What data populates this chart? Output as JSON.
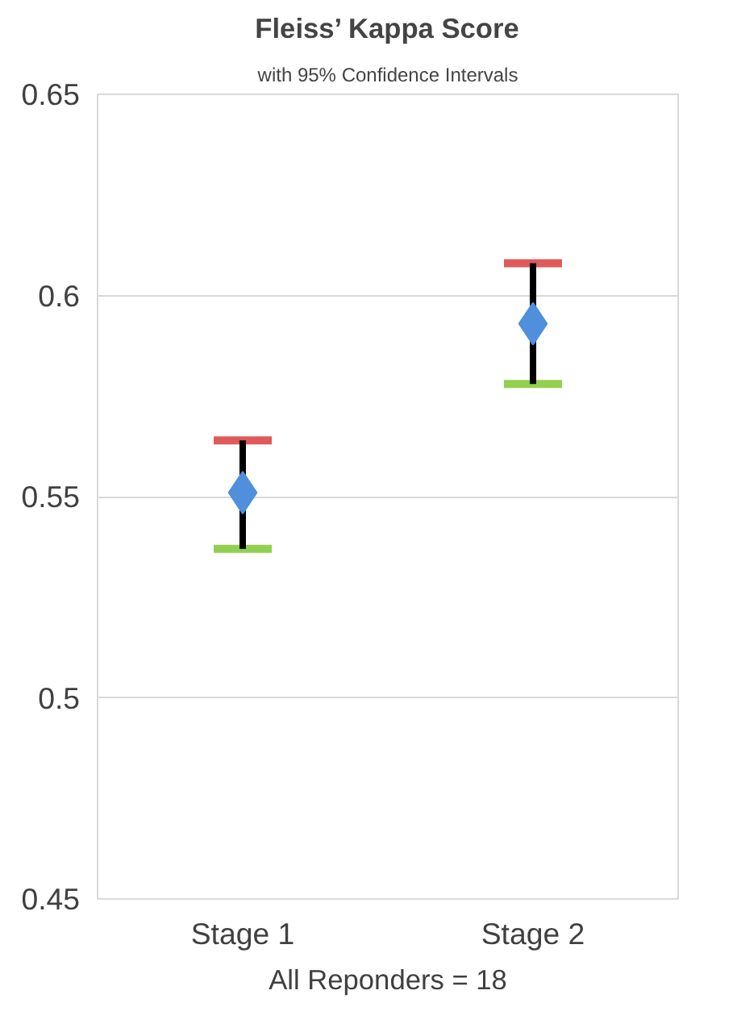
{
  "chart_data": {
    "type": "scatter",
    "title": "Fleiss’ Kappa Score",
    "subtitle": "with 95% Confidence Intervals",
    "xlabel": "All Reponders = 18",
    "categories": [
      "Stage 1",
      "Stage 2"
    ],
    "series": [
      {
        "color": "#4f8fdc",
        "values": [
          0.551,
          0.593
        ],
        "errors": [
          [
            0.537,
            0.564
          ],
          [
            0.578,
            0.608
          ]
        ]
      }
    ],
    "ylim": [
      0.45,
      0.65
    ],
    "yticks": [
      0.45,
      0.5,
      0.55,
      0.6,
      0.65
    ],
    "grid": "y",
    "marker": "diamond"
  }
}
